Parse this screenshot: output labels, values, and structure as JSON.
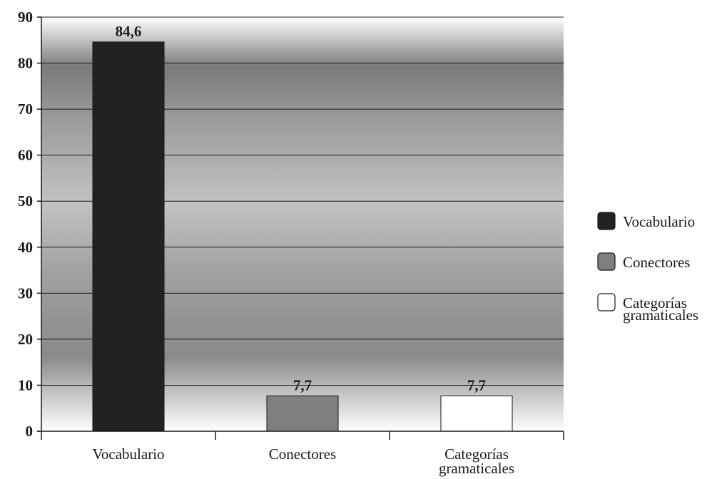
{
  "chart_data": {
    "type": "bar",
    "categories": [
      "Vocabulario",
      "Conectores",
      "Categorías gramaticales"
    ],
    "category_lines": [
      [
        "Vocabulario"
      ],
      [
        "Conectores"
      ],
      [
        "Categorías",
        "gramaticales"
      ]
    ],
    "values": [
      84.6,
      7.7,
      7.7
    ],
    "value_labels": [
      "84,6",
      "7,7",
      "7,7"
    ],
    "title": "",
    "xlabel": "",
    "ylabel": "",
    "ylim": [
      0,
      90
    ],
    "yticks": [
      0,
      10,
      20,
      30,
      40,
      50,
      60,
      70,
      80,
      90
    ],
    "grid": true,
    "legend_position": "right",
    "legend": [
      {
        "lines": [
          "Vocabulario"
        ],
        "color": "#222222"
      },
      {
        "lines": [
          "Conectores"
        ],
        "color": "#7f7f7f"
      },
      {
        "lines": [
          "Categorías",
          "gramaticales"
        ],
        "color": "#ffffff"
      }
    ],
    "bar_colors": [
      "#222222",
      "#7f7f7f",
      "#ffffff"
    ]
  }
}
